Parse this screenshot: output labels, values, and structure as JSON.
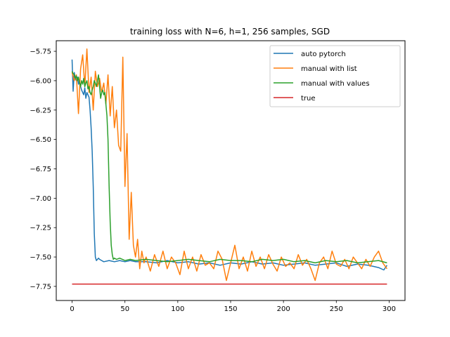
{
  "chart_data": {
    "type": "line",
    "title": "training loss with N=6, h=1, 256 samples, SGD",
    "xlabel": "",
    "ylabel": "",
    "xlim": [
      -15,
      315
    ],
    "ylim": [
      -7.87,
      -5.66
    ],
    "xticks": [
      0,
      50,
      100,
      150,
      200,
      250,
      300
    ],
    "xtick_labels": [
      "0",
      "50",
      "100",
      "150",
      "200",
      "250",
      "300"
    ],
    "yticks": [
      -5.75,
      -6.0,
      -6.25,
      -6.5,
      -6.75,
      -7.0,
      -7.25,
      -7.5,
      -7.75
    ],
    "ytick_labels": [
      "−5.75",
      "−6.00",
      "−6.25",
      "−6.50",
      "−6.75",
      "−7.00",
      "−7.25",
      "−7.50",
      "−7.75"
    ],
    "grid": false,
    "legend_position": "top-right",
    "series": [
      {
        "name": "auto pytorch",
        "color": "#1f77b4",
        "x": [
          0,
          1,
          2,
          3,
          4,
          5,
          6,
          7,
          8,
          9,
          10,
          11,
          12,
          13,
          14,
          15,
          16,
          17,
          18,
          19,
          20,
          21,
          22,
          23,
          24,
          25,
          26,
          28,
          30,
          35,
          40,
          45,
          50,
          55,
          60,
          70,
          80,
          90,
          100,
          110,
          120,
          130,
          140,
          150,
          160,
          170,
          180,
          190,
          200,
          210,
          220,
          230,
          240,
          250,
          260,
          270,
          280,
          285,
          290,
          295,
          298
        ],
        "y": [
          -5.82,
          -6.09,
          -5.93,
          -5.98,
          -6.0,
          -5.97,
          -6.03,
          -6.0,
          -6.05,
          -6.08,
          -6.1,
          -6.12,
          -6.06,
          -6.15,
          -6.1,
          -6.12,
          -6.14,
          -6.25,
          -6.4,
          -6.6,
          -6.9,
          -7.3,
          -7.5,
          -7.53,
          -7.52,
          -7.51,
          -7.52,
          -7.53,
          -7.54,
          -7.53,
          -7.54,
          -7.53,
          -7.54,
          -7.53,
          -7.54,
          -7.54,
          -7.55,
          -7.53,
          -7.55,
          -7.54,
          -7.56,
          -7.55,
          -7.57,
          -7.55,
          -7.56,
          -7.54,
          -7.56,
          -7.55,
          -7.57,
          -7.56,
          -7.55,
          -7.57,
          -7.56,
          -7.55,
          -7.58,
          -7.56,
          -7.57,
          -7.58,
          -7.59,
          -7.61,
          -7.57
        ]
      },
      {
        "name": "manual with list",
        "color": "#ff7f0e",
        "x": [
          0,
          2,
          4,
          6,
          8,
          10,
          12,
          14,
          16,
          18,
          20,
          22,
          24,
          26,
          28,
          30,
          32,
          34,
          36,
          38,
          40,
          42,
          44,
          46,
          48,
          50,
          52,
          54,
          56,
          58,
          60,
          62,
          64,
          66,
          68,
          70,
          74,
          78,
          82,
          86,
          90,
          94,
          98,
          102,
          106,
          110,
          114,
          118,
          122,
          126,
          130,
          134,
          138,
          142,
          146,
          150,
          154,
          158,
          162,
          166,
          170,
          174,
          178,
          182,
          186,
          190,
          194,
          198,
          202,
          206,
          210,
          214,
          218,
          222,
          226,
          230,
          234,
          238,
          242,
          246,
          250,
          254,
          258,
          262,
          266,
          270,
          274,
          278,
          282,
          286,
          290,
          294,
          298
        ],
        "y": [
          -5.93,
          -6.0,
          -5.95,
          -6.28,
          -5.9,
          -5.78,
          -6.05,
          -5.73,
          -6.1,
          -5.97,
          -6.25,
          -5.92,
          -6.05,
          -5.98,
          -6.1,
          -6.02,
          -6.2,
          -5.95,
          -6.3,
          -6.05,
          -6.4,
          -6.25,
          -6.55,
          -6.6,
          -5.8,
          -6.9,
          -6.45,
          -7.35,
          -6.95,
          -7.4,
          -7.5,
          -7.35,
          -7.6,
          -7.45,
          -7.55,
          -7.5,
          -7.62,
          -7.48,
          -7.58,
          -7.45,
          -7.6,
          -7.5,
          -7.55,
          -7.65,
          -7.45,
          -7.6,
          -7.5,
          -7.62,
          -7.48,
          -7.57,
          -7.55,
          -7.6,
          -7.45,
          -7.52,
          -7.7,
          -7.55,
          -7.4,
          -7.6,
          -7.5,
          -7.62,
          -7.45,
          -7.58,
          -7.5,
          -7.6,
          -7.48,
          -7.56,
          -7.62,
          -7.5,
          -7.58,
          -7.55,
          -7.6,
          -7.48,
          -7.57,
          -7.52,
          -7.6,
          -7.7,
          -7.55,
          -7.5,
          -7.6,
          -7.45,
          -7.56,
          -7.58,
          -7.52,
          -7.6,
          -7.5,
          -7.55,
          -7.6,
          -7.52,
          -7.58,
          -7.5,
          -7.45,
          -7.55,
          -7.6
        ]
      },
      {
        "name": "manual with values",
        "color": "#2ca02c",
        "x": [
          0,
          1,
          2,
          3,
          4,
          5,
          6,
          7,
          8,
          9,
          10,
          11,
          12,
          13,
          14,
          15,
          16,
          17,
          18,
          19,
          20,
          21,
          22,
          23,
          24,
          25,
          26,
          27,
          28,
          29,
          30,
          31,
          32,
          33,
          34,
          35,
          36,
          37,
          38,
          39,
          40,
          42,
          45,
          50,
          55,
          60,
          70,
          80,
          90,
          100,
          110,
          120,
          130,
          140,
          150,
          160,
          170,
          180,
          190,
          200,
          210,
          220,
          230,
          240,
          250,
          260,
          270,
          280,
          290,
          298
        ],
        "y": [
          -5.92,
          -5.94,
          -5.95,
          -5.98,
          -5.96,
          -6.0,
          -5.97,
          -6.02,
          -6.05,
          -6.0,
          -6.03,
          -5.98,
          -6.05,
          -6.02,
          -6.0,
          -6.07,
          -6.05,
          -6.1,
          -6.12,
          -6.08,
          -6.05,
          -6.0,
          -6.02,
          -6.05,
          -6.0,
          -5.95,
          -6.05,
          -6.15,
          -6.1,
          -6.08,
          -6.12,
          -6.1,
          -6.2,
          -6.3,
          -6.5,
          -6.9,
          -7.2,
          -7.4,
          -7.48,
          -7.52,
          -7.51,
          -7.52,
          -7.51,
          -7.53,
          -7.52,
          -7.53,
          -7.52,
          -7.53,
          -7.54,
          -7.53,
          -7.52,
          -7.53,
          -7.54,
          -7.52,
          -7.53,
          -7.53,
          -7.54,
          -7.52,
          -7.53,
          -7.52,
          -7.54,
          -7.53,
          -7.55,
          -7.53,
          -7.54,
          -7.53,
          -7.55,
          -7.54,
          -7.53,
          -7.55
        ]
      },
      {
        "name": "true",
        "color": "#d62728",
        "x": [
          0,
          298
        ],
        "y": [
          -7.73,
          -7.73
        ]
      }
    ]
  }
}
